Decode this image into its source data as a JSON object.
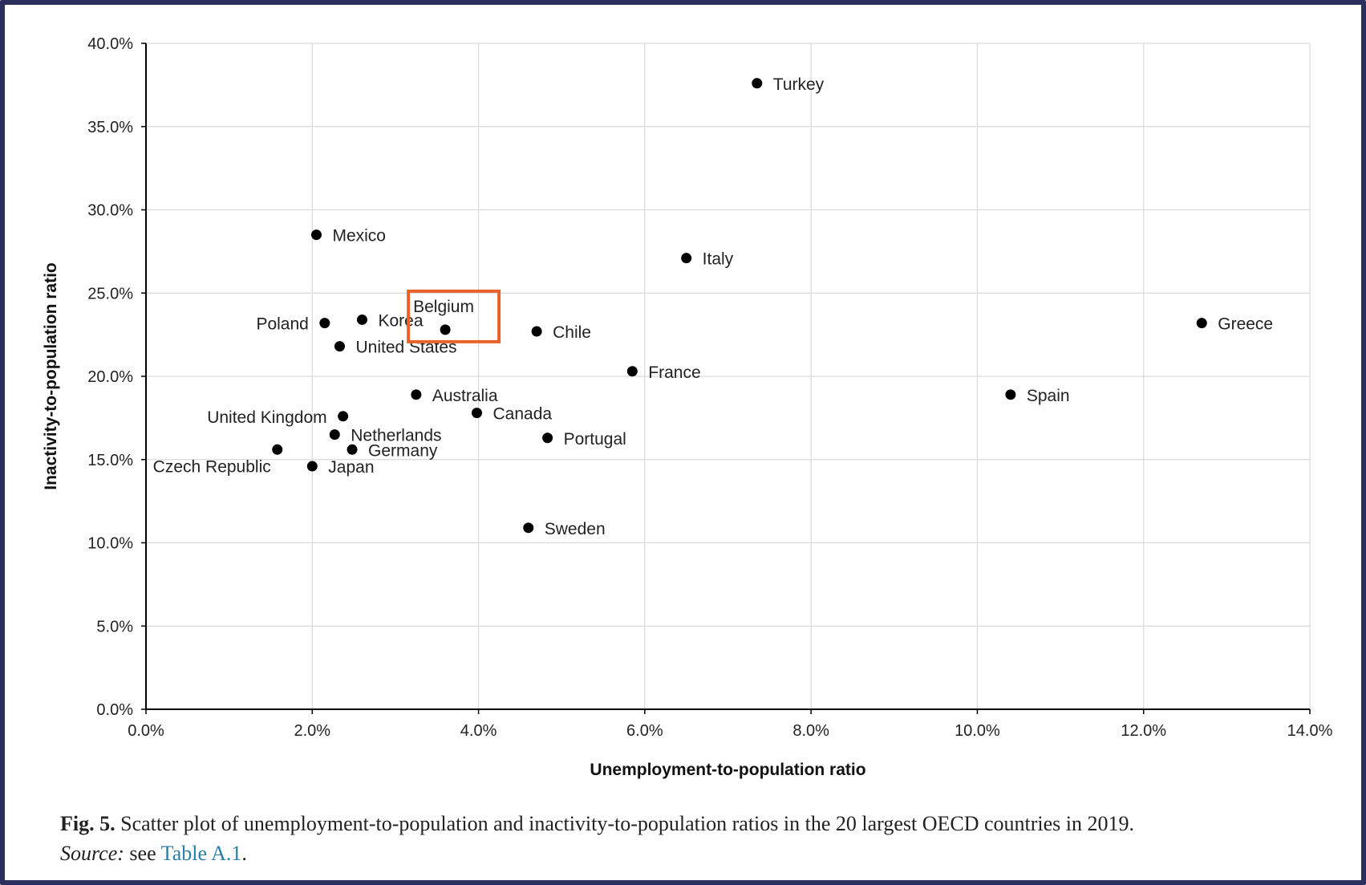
{
  "chart_data": {
    "type": "scatter",
    "xlabel": "Unemployment-to-population ratio",
    "ylabel": "Inactivity-to-population ratio",
    "xlim": [
      0,
      14
    ],
    "ylim": [
      0,
      40
    ],
    "x_ticks": [
      0,
      2,
      4,
      6,
      8,
      10,
      12,
      14
    ],
    "y_ticks": [
      0,
      5,
      10,
      15,
      20,
      25,
      30,
      35,
      40
    ],
    "x_tick_labels": [
      "0.0%",
      "2.0%",
      "4.0%",
      "6.0%",
      "8.0%",
      "10.0%",
      "12.0%",
      "14.0%"
    ],
    "y_tick_labels": [
      "0.0%",
      "5.0%",
      "10.0%",
      "15.0%",
      "20.0%",
      "25.0%",
      "30.0%",
      "35.0%",
      "40.0%"
    ],
    "grid": true,
    "highlight": "Belgium",
    "highlight_color": "#e8622c",
    "points": [
      {
        "label": "Turkey",
        "x": 7.35,
        "y": 37.6,
        "label_side": "right"
      },
      {
        "label": "Mexico",
        "x": 2.05,
        "y": 28.5,
        "label_side": "right"
      },
      {
        "label": "Italy",
        "x": 6.5,
        "y": 27.1,
        "label_side": "right"
      },
      {
        "label": "Belgium",
        "x": 3.6,
        "y": 22.8,
        "label_side": "above-left"
      },
      {
        "label": "Poland",
        "x": 2.15,
        "y": 23.2,
        "label_side": "left"
      },
      {
        "label": "Korea",
        "x": 2.6,
        "y": 23.4,
        "label_side": "right"
      },
      {
        "label": "Chile",
        "x": 4.7,
        "y": 22.7,
        "label_side": "right"
      },
      {
        "label": "United States",
        "x": 2.33,
        "y": 21.8,
        "label_side": "right"
      },
      {
        "label": "Greece",
        "x": 12.7,
        "y": 23.2,
        "label_side": "right"
      },
      {
        "label": "France",
        "x": 5.85,
        "y": 20.3,
        "label_side": "right"
      },
      {
        "label": "Australia",
        "x": 3.25,
        "y": 18.9,
        "label_side": "right"
      },
      {
        "label": "Spain",
        "x": 10.4,
        "y": 18.9,
        "label_side": "right"
      },
      {
        "label": "Canada",
        "x": 3.98,
        "y": 17.8,
        "label_side": "right"
      },
      {
        "label": "United Kingdom",
        "x": 2.37,
        "y": 17.6,
        "label_side": "left"
      },
      {
        "label": "Netherlands",
        "x": 2.27,
        "y": 16.5,
        "label_side": "right"
      },
      {
        "label": "Portugal",
        "x": 4.83,
        "y": 16.3,
        "label_side": "right"
      },
      {
        "label": "Germany",
        "x": 2.48,
        "y": 15.6,
        "label_side": "right"
      },
      {
        "label": "Czech Republic",
        "x": 1.58,
        "y": 15.6,
        "label_side": "below-left"
      },
      {
        "label": "Japan",
        "x": 2.0,
        "y": 14.6,
        "label_side": "right"
      },
      {
        "label": "Sweden",
        "x": 4.6,
        "y": 10.9,
        "label_side": "right"
      }
    ]
  },
  "caption": {
    "fig_label": "Fig. 5.",
    "text": "Scatter plot of unemployment-to-population and inactivity-to-population ratios in the 20 largest OECD countries in 2019.",
    "source_label": "Source:",
    "source_text": "see",
    "source_link": "Table A.1",
    "source_end": "."
  }
}
